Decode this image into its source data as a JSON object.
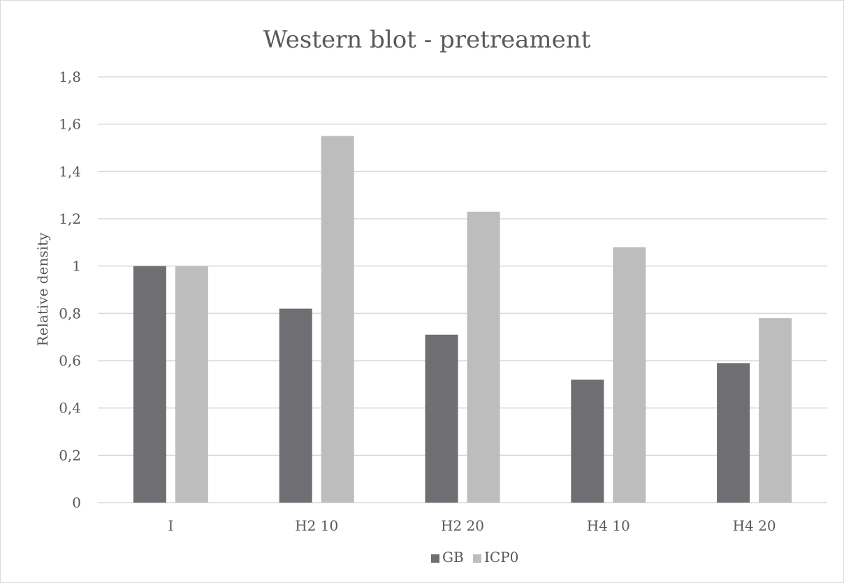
{
  "chart_data": {
    "type": "bar",
    "title": "Western blot - pretreament",
    "xlabel": "",
    "ylabel": "Relative density",
    "categories": [
      "I",
      "H2 10",
      "H2 20",
      "H4 10",
      "H4 20"
    ],
    "series": [
      {
        "name": "GB",
        "color": "#6f6e72",
        "values": [
          1.0,
          0.82,
          0.71,
          0.52,
          0.59
        ]
      },
      {
        "name": "ICP0",
        "color": "#bdbdbd",
        "values": [
          1.0,
          1.55,
          1.23,
          1.08,
          0.78
        ]
      }
    ],
    "ylim": [
      0,
      1.8
    ],
    "yticks": [
      "0",
      "0,2",
      "0,4",
      "0,6",
      "0,8",
      "1",
      "1,2",
      "1,4",
      "1,6",
      "1,8"
    ],
    "grid": true,
    "legend_position": "bottom",
    "colors": {
      "gridline": "#d9d9d9",
      "axis": "#d9d9d9",
      "text": "#595959",
      "frame": "#d9d9d9"
    }
  }
}
